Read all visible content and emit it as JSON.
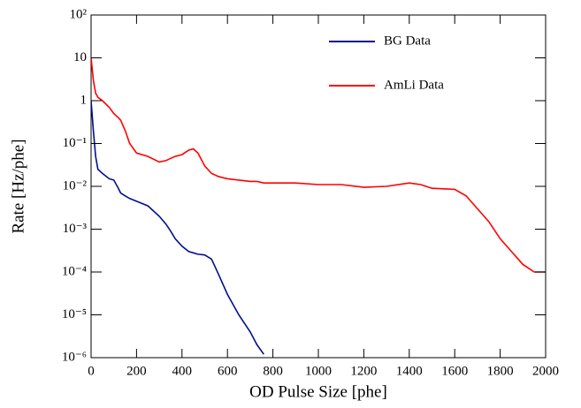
{
  "chart_data": {
    "type": "line",
    "xlabel": "OD Pulse Size [phe]",
    "ylabel": "Rate [Hz/phe]",
    "x": [
      0,
      10,
      20,
      30,
      50,
      80,
      100,
      120,
      130,
      150,
      170,
      200,
      250,
      300,
      330,
      350,
      370,
      400,
      430,
      450,
      470,
      500,
      530,
      560,
      600,
      650,
      700,
      730,
      760,
      800,
      900,
      1000,
      1100,
      1200,
      1300,
      1400,
      1450,
      1500,
      1600,
      1650,
      1700,
      1750,
      1800,
      1850,
      1900,
      1950,
      2000
    ],
    "series": [
      {
        "name": "BG Data",
        "color": "#000f8f",
        "values": [
          1,
          0.2,
          0.05,
          0.025,
          0.02,
          0.015,
          0.014,
          0.009,
          0.007,
          0.006,
          0.0052,
          0.0045,
          0.0035,
          0.002,
          0.0013,
          0.0009,
          0.0006,
          0.0004,
          0.0003,
          0.00028,
          0.00026,
          0.00025,
          0.0002,
          9e-05,
          3e-05,
          1e-05,
          4e-06,
          2e-06,
          1.2e-06,
          null,
          null,
          null,
          null,
          null,
          null,
          null,
          null,
          null,
          null,
          null,
          null,
          null,
          null,
          null,
          null,
          null,
          null
        ]
      },
      {
        "name": "AmLi Data",
        "color": "#ff0000",
        "values": [
          10,
          3,
          1.5,
          1.2,
          1.0,
          0.7,
          0.5,
          0.4,
          0.35,
          0.2,
          0.1,
          0.06,
          0.05,
          0.037,
          0.04,
          0.045,
          0.05,
          0.055,
          0.07,
          0.075,
          0.06,
          0.03,
          0.02,
          0.017,
          0.015,
          0.014,
          0.013,
          0.013,
          0.012,
          0.012,
          0.012,
          0.011,
          0.011,
          0.0095,
          0.01,
          0.012,
          0.011,
          0.009,
          0.0085,
          0.006,
          0.003,
          0.0015,
          0.0006,
          0.0003,
          0.00015,
          0.0001,
          0.0001
        ]
      }
    ],
    "xlim": [
      0,
      2000
    ],
    "xticks": [
      0,
      200,
      400,
      600,
      800,
      1000,
      1200,
      1400,
      1600,
      1800,
      2000
    ],
    "ylim": [
      1e-06,
      100
    ],
    "ylog": true,
    "yticks": [
      {
        "value": 1e-06,
        "label": "10⁻⁶"
      },
      {
        "value": 1e-05,
        "label": "10⁻⁵"
      },
      {
        "value": 0.0001,
        "label": "10⁻⁴"
      },
      {
        "value": 0.001,
        "label": "10⁻³"
      },
      {
        "value": 0.01,
        "label": "10⁻²"
      },
      {
        "value": 0.1,
        "label": "10⁻¹"
      },
      1,
      10,
      {
        "value": 100,
        "label": "10²"
      }
    ],
    "legend": "top right"
  }
}
